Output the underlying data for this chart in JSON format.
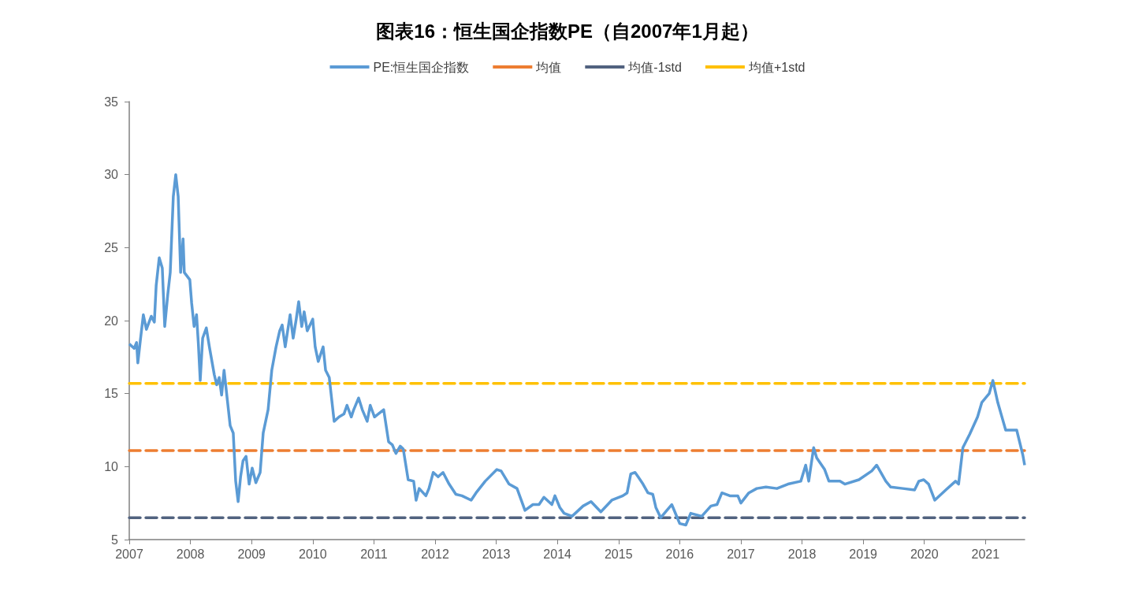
{
  "chart_data": {
    "type": "line",
    "title": "图表16：恒生国企指数PE（自2007年1月起）",
    "xlim": [
      2007,
      2021.64
    ],
    "xticks": [
      2007,
      2008,
      2009,
      2010,
      2011,
      2012,
      2013,
      2014,
      2015,
      2016,
      2017,
      2018,
      2019,
      2020,
      2021
    ],
    "ylim": [
      5,
      35
    ],
    "yticks": [
      5,
      10,
      15,
      20,
      25,
      30,
      35
    ],
    "grid": false,
    "legend": "top",
    "marker": "none",
    "series": [
      {
        "name": "PE:恒生国企指数",
        "color": "#5b9bd5",
        "line_style": "solid",
        "x": [
          2007.0,
          2007.08,
          2007.12,
          2007.14,
          2007.18,
          2007.23,
          2007.28,
          2007.36,
          2007.41,
          2007.44,
          2007.49,
          2007.54,
          2007.58,
          2007.63,
          2007.67,
          2007.72,
          2007.76,
          2007.8,
          2007.84,
          2007.88,
          2007.9,
          2007.99,
          2008.02,
          2008.06,
          2008.1,
          2008.13,
          2008.16,
          2008.2,
          2008.26,
          2008.31,
          2008.39,
          2008.43,
          2008.47,
          2008.51,
          2008.55,
          2008.6,
          2008.65,
          2008.7,
          2008.74,
          2008.78,
          2008.82,
          2008.86,
          2008.91,
          2008.96,
          2009.01,
          2009.07,
          2009.14,
          2009.19,
          2009.27,
          2009.33,
          2009.4,
          2009.46,
          2009.5,
          2009.55,
          2009.63,
          2009.68,
          2009.73,
          2009.77,
          2009.82,
          2009.86,
          2009.91,
          2010.0,
          2010.04,
          2010.09,
          2010.17,
          2010.21,
          2010.27,
          2010.35,
          2010.43,
          2010.51,
          2010.56,
          2010.63,
          2010.67,
          2010.75,
          2010.81,
          2010.89,
          2010.94,
          2011.01,
          2011.07,
          2011.16,
          2011.24,
          2011.3,
          2011.36,
          2011.43,
          2011.48,
          2011.56,
          2011.65,
          2011.69,
          2011.74,
          2011.85,
          2011.9,
          2011.97,
          2012.05,
          2012.13,
          2012.23,
          2012.34,
          2012.44,
          2012.59,
          2012.67,
          2012.82,
          2013.01,
          2013.08,
          2013.21,
          2013.34,
          2013.47,
          2013.6,
          2013.7,
          2013.78,
          2013.91,
          2013.96,
          2014.04,
          2014.11,
          2014.24,
          2014.42,
          2014.55,
          2014.71,
          2014.89,
          2015.07,
          2015.14,
          2015.2,
          2015.27,
          2015.32,
          2015.4,
          2015.48,
          2015.56,
          2015.61,
          2015.69,
          2015.79,
          2015.87,
          2015.92,
          2016.0,
          2016.1,
          2016.18,
          2016.36,
          2016.51,
          2016.61,
          2016.69,
          2016.82,
          2016.95,
          2017.0,
          2017.13,
          2017.26,
          2017.41,
          2017.59,
          2017.77,
          2017.98,
          2018.06,
          2018.11,
          2018.19,
          2018.24,
          2018.37,
          2018.44,
          2018.62,
          2018.7,
          2018.93,
          2019.14,
          2019.22,
          2019.37,
          2019.45,
          2019.65,
          2019.84,
          2019.91,
          2019.99,
          2020.07,
          2020.17,
          2020.35,
          2020.51,
          2020.56,
          2020.63,
          2020.74,
          2020.87,
          2020.94,
          2021.06,
          2021.12,
          2021.2,
          2021.33,
          2021.51,
          2021.61,
          2021.64
        ],
        "values": [
          18.4,
          18.1,
          18.5,
          17.1,
          18.6,
          20.4,
          19.4,
          20.3,
          19.9,
          22.4,
          24.3,
          23.6,
          19.6,
          21.8,
          23.3,
          28.5,
          30.0,
          28.5,
          23.3,
          25.6,
          23.3,
          22.8,
          21.2,
          19.6,
          20.4,
          18.4,
          15.9,
          18.8,
          19.5,
          18.2,
          16.3,
          15.6,
          16.1,
          14.9,
          16.6,
          14.7,
          12.8,
          12.3,
          9.0,
          7.6,
          9.3,
          10.4,
          10.7,
          8.8,
          9.9,
          8.9,
          9.6,
          12.3,
          13.9,
          16.6,
          18.2,
          19.3,
          19.7,
          18.2,
          20.4,
          18.8,
          20.1,
          21.3,
          19.6,
          20.6,
          19.3,
          20.1,
          18.2,
          17.2,
          18.2,
          16.6,
          16.1,
          13.1,
          13.4,
          13.6,
          14.2,
          13.4,
          13.9,
          14.7,
          13.9,
          13.1,
          14.2,
          13.4,
          13.6,
          13.9,
          11.7,
          11.5,
          10.9,
          11.4,
          11.2,
          9.1,
          9.0,
          7.7,
          8.5,
          8.0,
          8.5,
          9.6,
          9.3,
          9.6,
          8.8,
          8.1,
          8.0,
          7.7,
          8.2,
          9.0,
          9.8,
          9.7,
          8.8,
          8.5,
          7.0,
          7.4,
          7.4,
          7.9,
          7.4,
          8.0,
          7.2,
          6.8,
          6.6,
          7.3,
          7.6,
          6.9,
          7.7,
          8.0,
          8.2,
          9.5,
          9.6,
          9.3,
          8.8,
          8.2,
          8.1,
          7.2,
          6.5,
          7.0,
          7.4,
          6.9,
          6.1,
          6.0,
          6.8,
          6.6,
          7.3,
          7.4,
          8.2,
          8.0,
          8.0,
          7.5,
          8.2,
          8.5,
          8.6,
          8.5,
          8.8,
          9.0,
          10.1,
          9.0,
          11.3,
          10.6,
          9.8,
          9.0,
          9.0,
          8.8,
          9.1,
          9.7,
          10.1,
          9.0,
          8.6,
          8.5,
          8.4,
          9.0,
          9.1,
          8.8,
          7.7,
          8.4,
          9.0,
          8.8,
          11.3,
          12.2,
          13.4,
          14.4,
          15.0,
          15.9,
          14.4,
          12.5,
          12.5,
          10.8,
          10.1
        ]
      },
      {
        "name": "均值",
        "color": "#ed7d31",
        "line_style": "dashed",
        "x": [
          2007,
          2021.64
        ],
        "values": [
          11.1,
          11.1
        ]
      },
      {
        "name": "均值-1std",
        "color": "#51627f",
        "line_style": "dashed",
        "x": [
          2007,
          2021.64
        ],
        "values": [
          6.5,
          6.5
        ]
      },
      {
        "name": "均值+1std",
        "color": "#ffc000",
        "line_style": "dashed",
        "x": [
          2007,
          2021.64
        ],
        "values": [
          15.7,
          15.7
        ]
      }
    ]
  }
}
